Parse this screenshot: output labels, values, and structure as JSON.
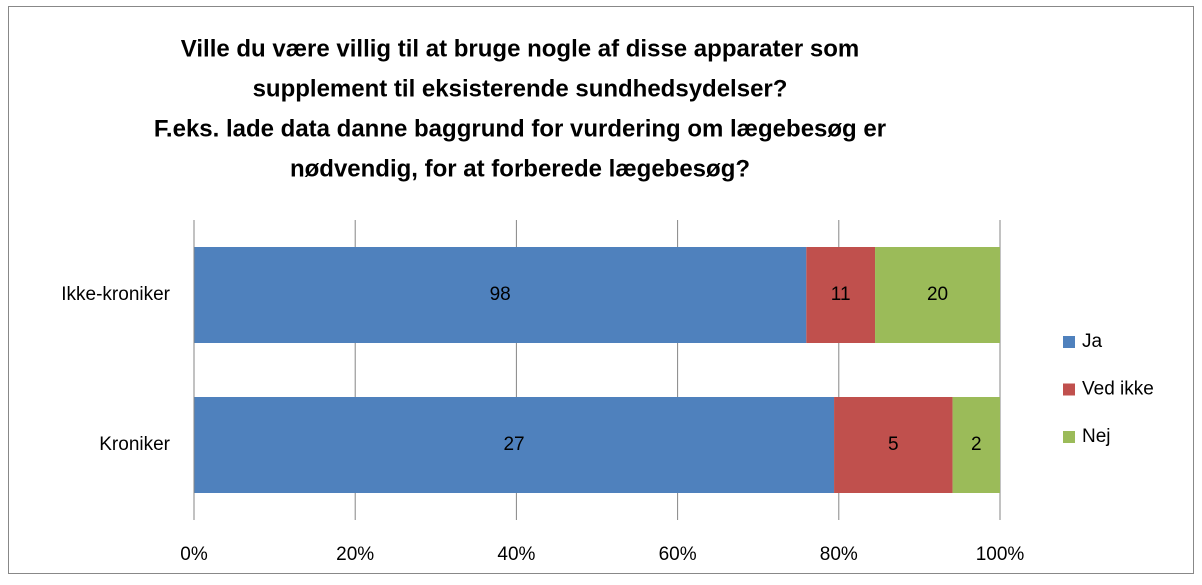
{
  "chart_data": {
    "type": "bar",
    "orientation": "horizontal",
    "stacked": "percent",
    "title": [
      "Ville du være villig til at bruge nogle af disse apparater som",
      "supplement til eksisterende sundhedsydelser?",
      "F.eks. lade data danne baggrund for vurdering om lægebesøg er",
      "nødvendig, for at forberede lægebesøg?"
    ],
    "categories": [
      "Ikke-kroniker",
      "Kroniker"
    ],
    "series": [
      {
        "name": "Ja",
        "color": "#4f81bd",
        "values": [
          98,
          27
        ]
      },
      {
        "name": "Ved ikke",
        "color": "#c0504d",
        "values": [
          11,
          5
        ]
      },
      {
        "name": "Nej",
        "color": "#9bbb59",
        "values": [
          20,
          2
        ]
      }
    ],
    "xlim": [
      0,
      100
    ],
    "xticks": [
      {
        "value": 0,
        "label": "0%"
      },
      {
        "value": 20,
        "label": "20%"
      },
      {
        "value": 40,
        "label": "40%"
      },
      {
        "value": 60,
        "label": "60%"
      },
      {
        "value": 80,
        "label": "80%"
      },
      {
        "value": 100,
        "label": "100%"
      }
    ],
    "grid": true,
    "legend": "right"
  }
}
